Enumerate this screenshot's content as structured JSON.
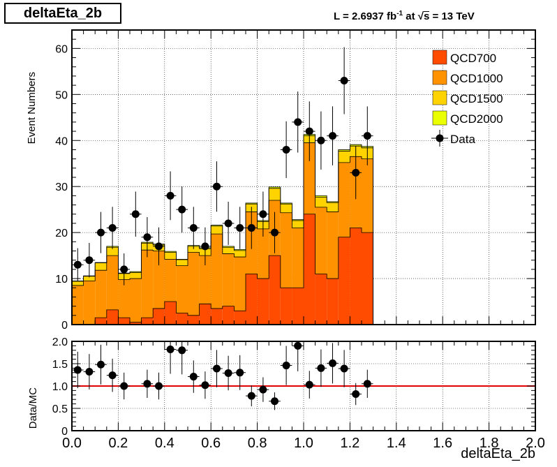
{
  "title": "deltaEta_2b",
  "lumi": {
    "prefix": "L = 2.6937 fb",
    "exponent": "-1",
    "at": " at ",
    "sqrt_arg": "s",
    "energy": " = 13 TeV"
  },
  "colors": {
    "QCD700": "#ff4c00",
    "QCD1000": "#ff9200",
    "QCD1500": "#ffd300",
    "QCD2000": "#eaff00",
    "data": "#000000",
    "ratio_line": "#e00000"
  },
  "chart_data": [
    {
      "type": "bar",
      "subtype": "stacked-histogram",
      "ylabel": "Event Numbers",
      "xlim": [
        0.0,
        2.0
      ],
      "ylim": [
        0,
        64
      ],
      "yticks": [
        0,
        10,
        20,
        30,
        40,
        50,
        60
      ],
      "grid": true,
      "legend_placement": "top-right",
      "bin_edges": [
        0.0,
        0.05,
        0.1,
        0.15,
        0.2,
        0.25,
        0.3,
        0.35,
        0.4,
        0.45,
        0.5,
        0.55,
        0.6,
        0.65,
        0.7,
        0.75,
        0.8,
        0.85,
        0.9,
        0.95,
        1.0,
        1.05,
        1.1,
        1.15,
        1.2,
        1.25,
        1.3
      ],
      "series": [
        {
          "name": "QCD700",
          "values": [
            0,
            0,
            1.5,
            3.2,
            1.5,
            0.5,
            1.5,
            3.5,
            5,
            2.5,
            2,
            4.5,
            3.5,
            4,
            3,
            11,
            10,
            15,
            8,
            8,
            24,
            11,
            10,
            19,
            21,
            20
          ]
        },
        {
          "name": "QCD1000",
          "values": [
            8.5,
            9.5,
            10.3,
            11.8,
            8.3,
            9.5,
            14.7,
            12.5,
            9.2,
            10.3,
            13.7,
            10.5,
            16.2,
            11.4,
            11.7,
            13.5,
            10.8,
            12,
            16.3,
            13,
            15.5,
            14.5,
            14.5,
            16.2,
            15.5,
            16
          ]
        },
        {
          "name": "QCD1500",
          "values": [
            0.9,
            1,
            1.6,
            1.8,
            1.3,
            1.3,
            1.5,
            1.3,
            1.5,
            1.3,
            1.3,
            1.5,
            1.7,
            1.4,
            1.4,
            1.7,
            1.6,
            2.6,
            1.9,
            1.6,
            1.5,
            2.2,
            2,
            2.5,
            2.3,
            2.4
          ]
        },
        {
          "name": "QCD2000",
          "values": [
            0.1,
            0.1,
            0.1,
            0.2,
            0.1,
            0.2,
            0.2,
            0.2,
            0.2,
            0.1,
            0.2,
            0.2,
            0.2,
            0.2,
            0.2,
            0.2,
            0.2,
            0.3,
            0.2,
            0.2,
            0.3,
            0.3,
            0.2,
            0.3,
            0.3,
            0.3
          ]
        }
      ],
      "legend": [
        "QCD700",
        "QCD1000",
        "QCD1500",
        "QCD2000",
        "Data"
      ],
      "data_points": {
        "name": "Data",
        "x": [
          0.025,
          0.075,
          0.125,
          0.175,
          0.225,
          0.275,
          0.325,
          0.375,
          0.425,
          0.475,
          0.525,
          0.575,
          0.625,
          0.675,
          0.725,
          0.775,
          0.825,
          0.875,
          0.925,
          0.975,
          1.025,
          1.075,
          1.125,
          1.175,
          1.225,
          1.275
        ],
        "y": [
          13,
          14,
          20,
          21,
          12,
          24,
          19,
          17,
          28,
          25,
          21,
          17,
          30,
          22,
          21,
          21,
          24,
          20,
          38,
          44,
          42,
          40,
          41,
          53,
          33,
          41
        ]
      }
    },
    {
      "type": "scatter",
      "xlabel": "deltaEta_2b",
      "ylabel": "Data/MC",
      "xlim": [
        0.0,
        2.0
      ],
      "ylim": [
        0.0,
        2.0
      ],
      "yticks": [
        "0",
        "0.5",
        "1.0",
        "1.5",
        "2.0"
      ],
      "xticks": [
        "0.0",
        "0.2",
        "0.4",
        "0.6",
        "0.8",
        "1.0",
        "1.2",
        "1.4",
        "1.6",
        "1.8",
        "2.0"
      ],
      "grid": true,
      "reference_line": 1.0,
      "x": [
        0.025,
        0.075,
        0.125,
        0.175,
        0.225,
        0.325,
        0.375,
        0.425,
        0.475,
        0.525,
        0.575,
        0.625,
        0.675,
        0.725,
        0.775,
        0.825,
        0.875,
        0.925,
        0.975,
        1.025,
        1.075,
        1.125,
        1.175,
        1.225,
        1.275
      ],
      "y": [
        1.36,
        1.32,
        1.48,
        1.24,
        1.0,
        1.05,
        1.0,
        1.82,
        1.8,
        1.21,
        1.02,
        1.39,
        1.29,
        1.3,
        0.78,
        0.92,
        0.66,
        1.46,
        1.9,
        1.03,
        1.4,
        1.51,
        1.39,
        0.82,
        1.05
      ]
    }
  ]
}
